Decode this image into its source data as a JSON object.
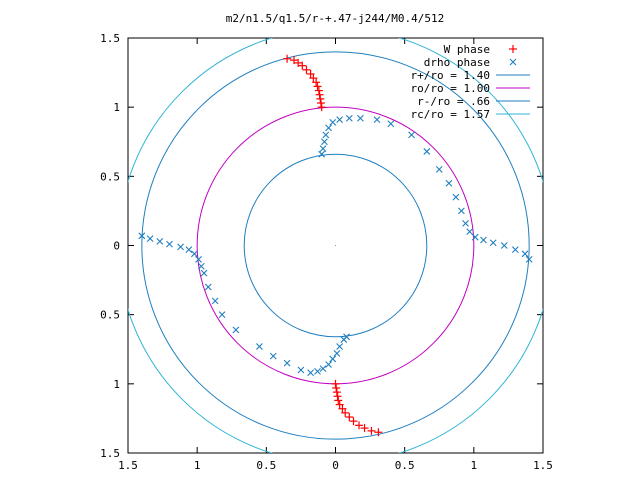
{
  "chart_data": {
    "type": "scatter",
    "title": "m2/n1.5/q1.5/r-+.47-j244/M0.4/512",
    "xlim": [
      -1.5,
      1.5
    ],
    "ylim": [
      -1.5,
      1.5
    ],
    "x_tick_values": [
      -1.5,
      -1,
      -0.5,
      0,
      0.5,
      1,
      1.5
    ],
    "x_tick_labels": [
      "1.5",
      "1",
      "0.5",
      "0",
      "0.5",
      "1",
      "1.5"
    ],
    "y_tick_values": [
      1.5,
      1,
      0.5,
      0,
      -0.5,
      -1,
      -1.5
    ],
    "y_tick_labels": [
      "1.5",
      "1",
      "0.5",
      "0",
      "0.5",
      "1",
      "1.5"
    ],
    "grid": false,
    "legend_position": "top-right",
    "circles": [
      {
        "label": "r+/ro = 1.40",
        "radius": 1.4,
        "color": "#1f7fbf"
      },
      {
        "label": "ro/ro = 1.00",
        "radius": 1.0,
        "color": "#c000c0"
      },
      {
        "label": "r-/ro = .66",
        "radius": 0.66,
        "color": "#1f7fbf"
      },
      {
        "label": "rc/ro = 1.57",
        "radius": 1.57,
        "color": "#2fb5d5"
      }
    ],
    "series": [
      {
        "name": "W phase",
        "marker": "plus",
        "color": "#ff0000",
        "points": [
          [
            -0.35,
            1.35
          ],
          [
            -0.3,
            1.34
          ],
          [
            -0.27,
            1.32
          ],
          [
            -0.24,
            1.3
          ],
          [
            -0.21,
            1.27
          ],
          [
            -0.18,
            1.24
          ],
          [
            -0.16,
            1.21
          ],
          [
            -0.14,
            1.18
          ],
          [
            -0.13,
            1.15
          ],
          [
            -0.12,
            1.12
          ],
          [
            -0.115,
            1.09
          ],
          [
            -0.11,
            1.06
          ],
          [
            -0.105,
            1.03
          ],
          [
            -0.1,
            1.0
          ],
          [
            0.0,
            -1.0
          ],
          [
            0.005,
            -1.03
          ],
          [
            0.01,
            -1.06
          ],
          [
            0.015,
            -1.09
          ],
          [
            0.02,
            -1.12
          ],
          [
            0.03,
            -1.15
          ],
          [
            0.05,
            -1.18
          ],
          [
            0.07,
            -1.21
          ],
          [
            0.1,
            -1.24
          ],
          [
            0.13,
            -1.27
          ],
          [
            0.17,
            -1.3
          ],
          [
            0.21,
            -1.32
          ],
          [
            0.26,
            -1.34
          ],
          [
            0.31,
            -1.35
          ]
        ]
      },
      {
        "name": "drho phase",
        "marker": "cross",
        "color": "#1f7fbf",
        "points": [
          [
            -1.4,
            0.07
          ],
          [
            -1.34,
            0.05
          ],
          [
            -1.27,
            0.03
          ],
          [
            -1.2,
            0.01
          ],
          [
            -1.12,
            -0.01
          ],
          [
            -1.06,
            -0.03
          ],
          [
            -1.02,
            -0.06
          ],
          [
            -0.99,
            -0.1
          ],
          [
            -0.97,
            -0.15
          ],
          [
            -0.95,
            -0.2
          ],
          [
            -0.92,
            -0.3
          ],
          [
            -0.87,
            -0.4
          ],
          [
            -0.82,
            -0.5
          ],
          [
            -0.72,
            -0.61
          ],
          [
            -0.55,
            -0.73
          ],
          [
            -0.45,
            -0.8
          ],
          [
            -0.35,
            -0.85
          ],
          [
            -0.25,
            -0.9
          ],
          [
            -0.18,
            -0.92
          ],
          [
            -0.13,
            -0.91
          ],
          [
            -0.09,
            -0.89
          ],
          [
            -0.05,
            -0.86
          ],
          [
            -0.02,
            -0.82
          ],
          [
            0.01,
            -0.78
          ],
          [
            0.03,
            -0.73
          ],
          [
            0.06,
            -0.68
          ],
          [
            0.08,
            -0.66
          ],
          [
            -0.1,
            0.66
          ],
          [
            -0.09,
            0.7
          ],
          [
            -0.08,
            0.75
          ],
          [
            -0.07,
            0.8
          ],
          [
            -0.05,
            0.85
          ],
          [
            -0.02,
            0.89
          ],
          [
            0.03,
            0.91
          ],
          [
            0.1,
            0.92
          ],
          [
            0.18,
            0.92
          ],
          [
            0.3,
            0.91
          ],
          [
            0.4,
            0.88
          ],
          [
            0.55,
            0.8
          ],
          [
            0.66,
            0.68
          ],
          [
            0.75,
            0.55
          ],
          [
            0.82,
            0.45
          ],
          [
            0.87,
            0.35
          ],
          [
            0.91,
            0.25
          ],
          [
            0.94,
            0.16
          ],
          [
            0.97,
            0.1
          ],
          [
            1.01,
            0.06
          ],
          [
            1.07,
            0.04
          ],
          [
            1.14,
            0.02
          ],
          [
            1.22,
            0.0
          ],
          [
            1.3,
            -0.03
          ],
          [
            1.37,
            -0.06
          ],
          [
            1.4,
            -0.1
          ]
        ]
      }
    ]
  }
}
